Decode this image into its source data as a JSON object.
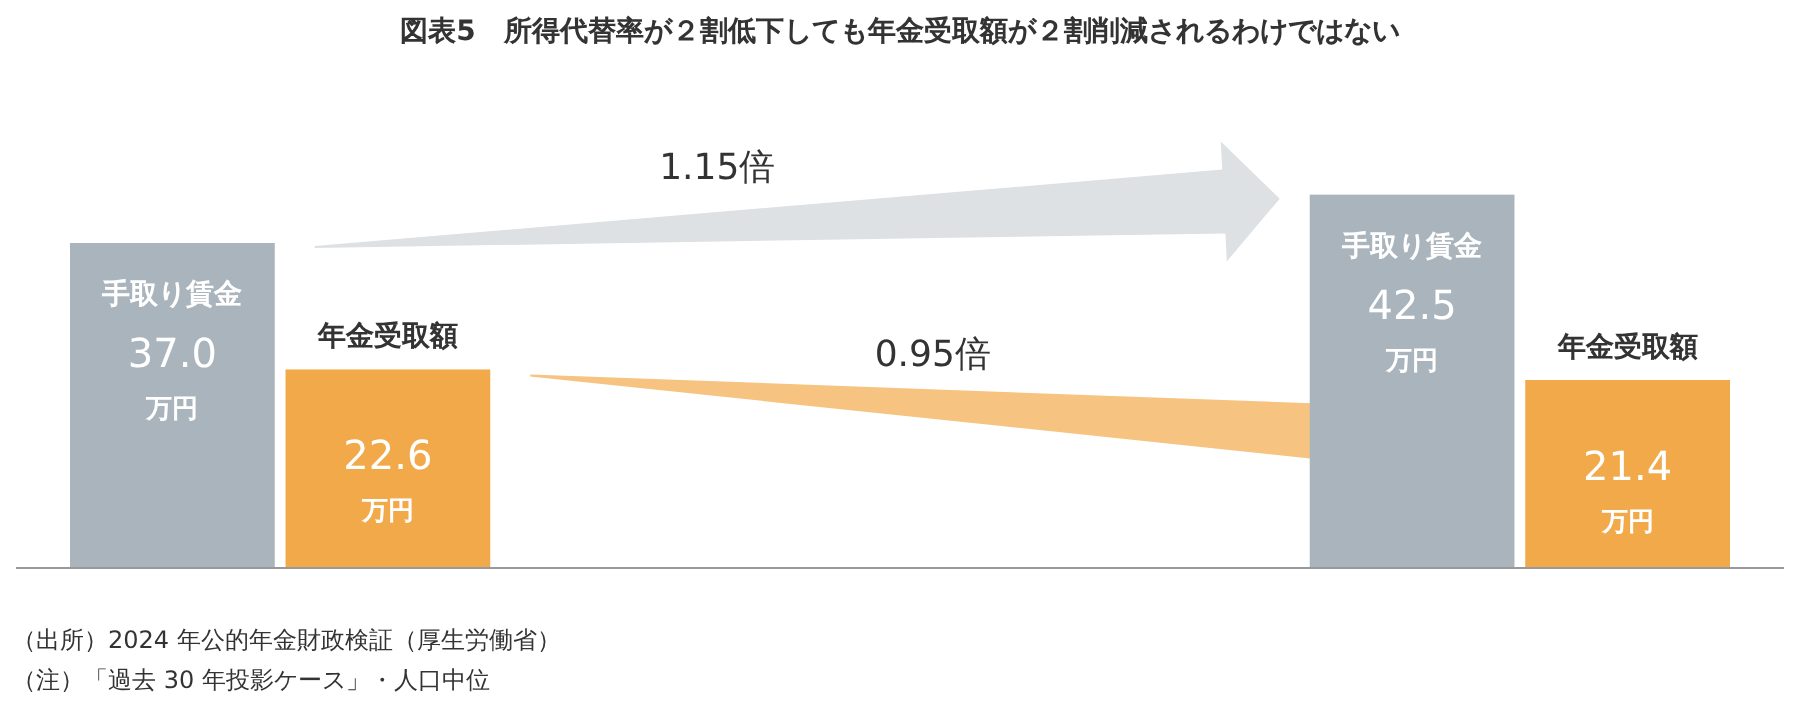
{
  "chart_data": {
    "type": "bar",
    "title": "図表5　所得代替率が２割低下しても年金受取額が２割削減されるわけではない",
    "categories": [
      null,
      null
    ],
    "series": [
      {
        "name": "手取り賃金",
        "color": "#a9b4bc",
        "values": [
          37.0,
          42.5
        ],
        "value_labels": [
          "37.0 万円",
          "42.5 万円"
        ]
      },
      {
        "name": "年金受取額",
        "color": "#f2a94a",
        "values": [
          22.6,
          21.4
        ],
        "value_labels": [
          "22.6 万円",
          "21.4 万円"
        ]
      }
    ],
    "annotations": [
      "1.15倍",
      "0.95倍",
      "（出所）2024 年公的年金財政検証（厚生労働省）",
      "（注）「過去 30 年投影ケース」・人口中位"
    ]
  }
}
